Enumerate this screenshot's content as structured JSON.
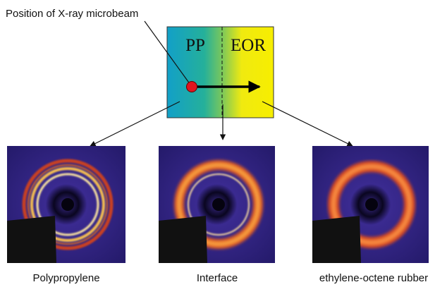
{
  "labels": {
    "beam": "Position of X-ray microbeam",
    "left": "PP",
    "right": "EOR"
  },
  "panels": [
    {
      "caption": "Polypropylene"
    },
    {
      "caption": "Interface"
    },
    {
      "caption": "ethylene-octene rubber"
    }
  ]
}
